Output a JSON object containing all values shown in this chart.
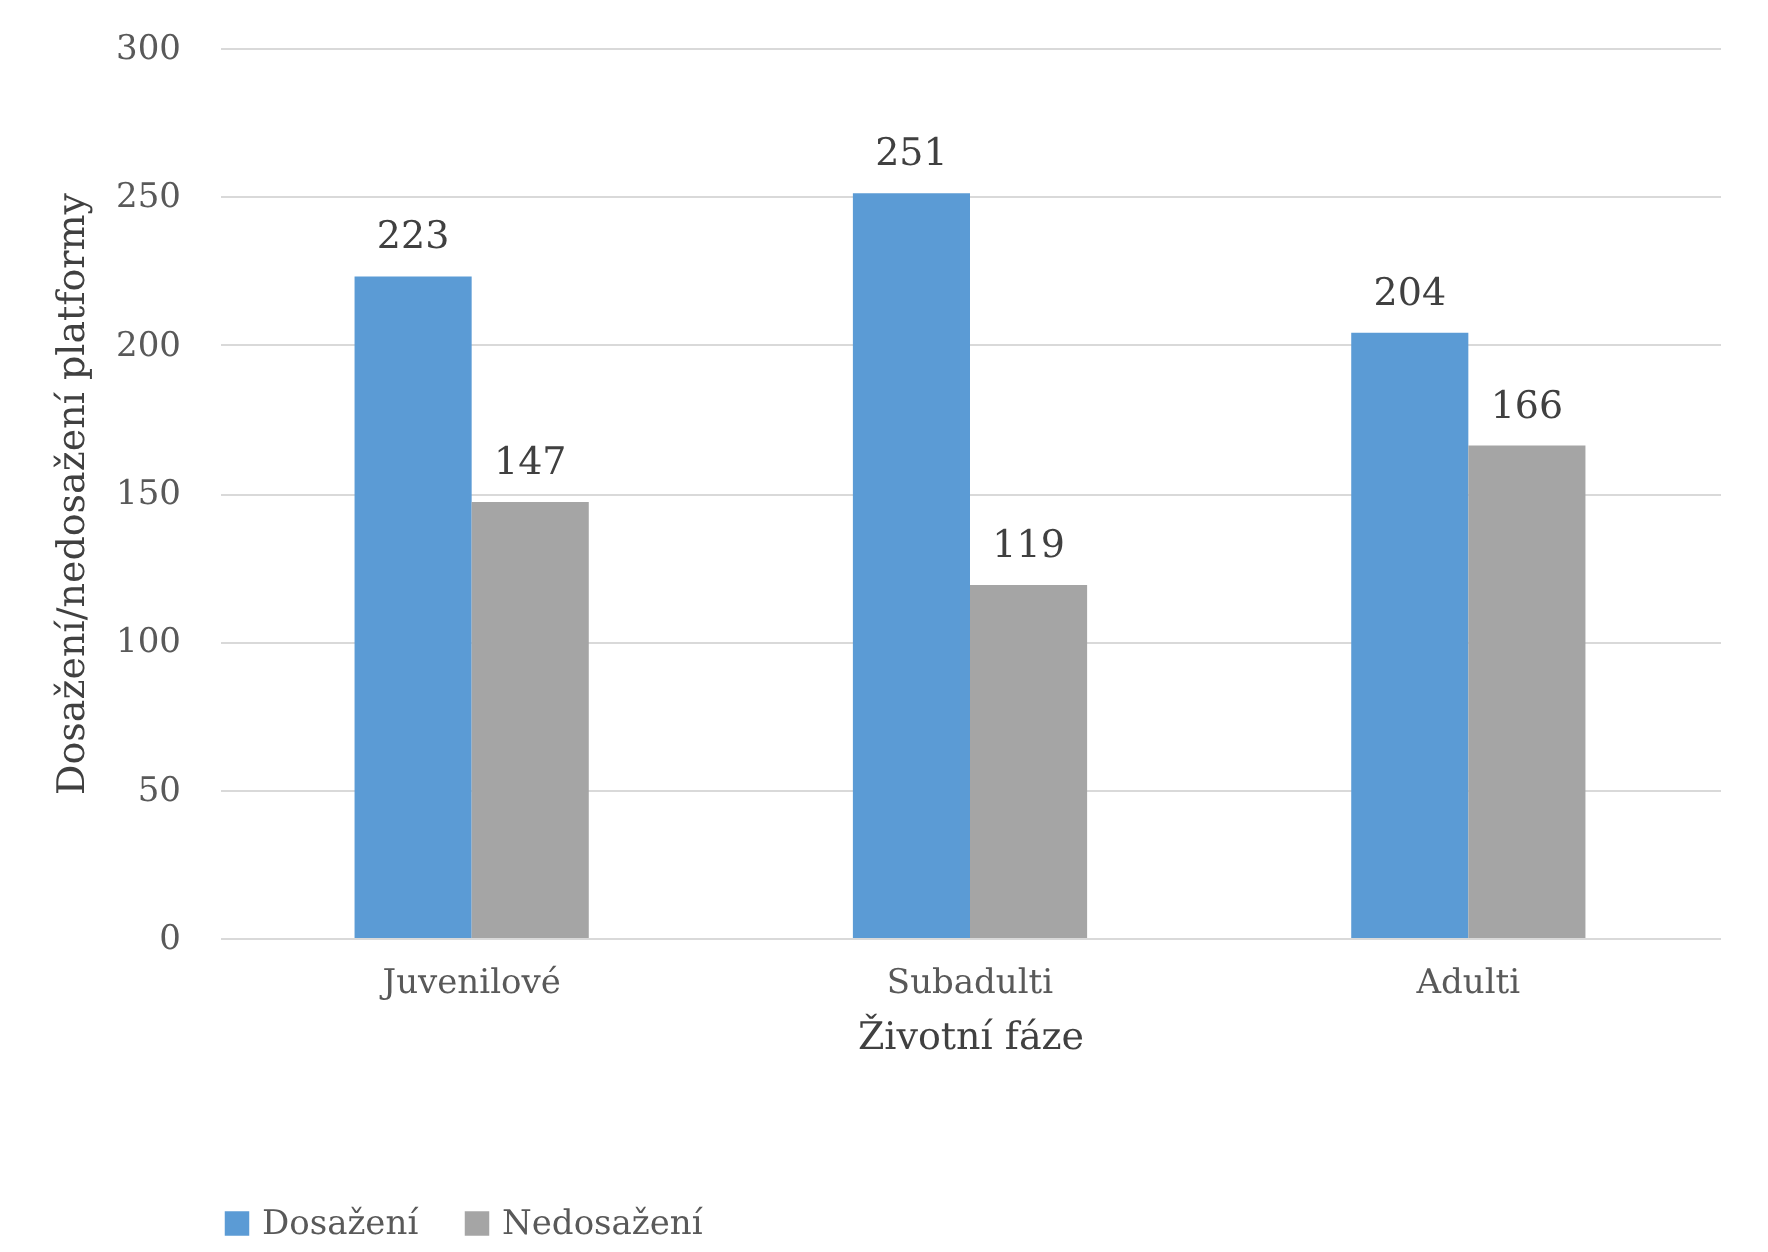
{
  "chart_data": {
    "type": "bar",
    "xlabel": "Životní fáze",
    "ylabel": "Dosažení/nedosažení platformy",
    "categories": [
      "Juvenilové",
      "Subadulti",
      "Adulti"
    ],
    "series": [
      {
        "name": "Dosažení",
        "color": "#5b9bd5",
        "values": [
          223,
          251,
          204
        ]
      },
      {
        "name": "Nedosažení",
        "color": "#a5a5a5",
        "values": [
          147,
          119,
          166
        ]
      }
    ],
    "ylim": [
      0,
      300
    ],
    "yticks": [
      0,
      50,
      100,
      150,
      200,
      250,
      300
    ],
    "grid": "y",
    "legend": "bottom",
    "data_labels": true
  }
}
